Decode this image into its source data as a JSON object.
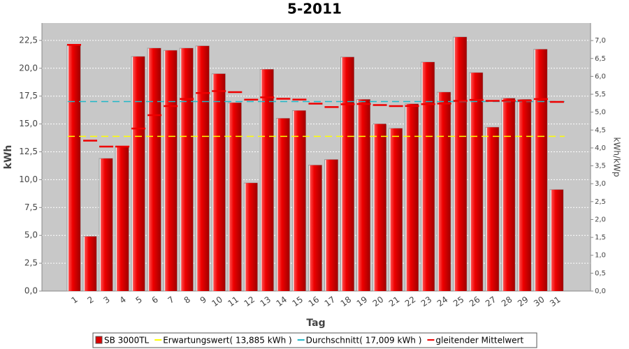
{
  "chart_data": {
    "type": "bar",
    "title": "5-2011",
    "x_label": "Tag",
    "y_label": "kWh",
    "y2_label": "kWh/kWp",
    "categories": [
      "1",
      "2",
      "3",
      "4",
      "5",
      "6",
      "7",
      "8",
      "9",
      "10",
      "11",
      "12",
      "13",
      "14",
      "15",
      "16",
      "17",
      "18",
      "19",
      "20",
      "21",
      "22",
      "23",
      "24",
      "25",
      "26",
      "27",
      "28",
      "29",
      "30",
      "31"
    ],
    "ylim": [
      0,
      24.06
    ],
    "yticks": [
      {
        "value": 0,
        "label": "0,0"
      },
      {
        "value": 2.5,
        "label": "2,5"
      },
      {
        "value": 5,
        "label": "5,0"
      },
      {
        "value": 7.5,
        "label": "7,5"
      },
      {
        "value": 10,
        "label": "10,0"
      },
      {
        "value": 12.5,
        "label": "12,5"
      },
      {
        "value": 15,
        "label": "15,0"
      },
      {
        "value": 17.5,
        "label": "17,5"
      },
      {
        "value": 20,
        "label": "20,0"
      },
      {
        "value": 22.5,
        "label": "22,5"
      }
    ],
    "y2lim": [
      0,
      7.49
    ],
    "y2ticks": [
      {
        "value": 0,
        "label": "0,0"
      },
      {
        "value": 0.5,
        "label": "0,5"
      },
      {
        "value": 1,
        "label": "1,0"
      },
      {
        "value": 1.5,
        "label": "1,5"
      },
      {
        "value": 2,
        "label": "2,0"
      },
      {
        "value": 2.5,
        "label": "2,5"
      },
      {
        "value": 3,
        "label": "3,0"
      },
      {
        "value": 3.5,
        "label": "3,5"
      },
      {
        "value": 4,
        "label": "4,0"
      },
      {
        "value": 4.5,
        "label": "4,5"
      },
      {
        "value": 5,
        "label": "5,0"
      },
      {
        "value": 5.5,
        "label": "5,5"
      },
      {
        "value": 6,
        "label": "6,0"
      },
      {
        "value": 6.5,
        "label": "6,5"
      },
      {
        "value": 7,
        "label": "7,0"
      }
    ],
    "grid": true,
    "legend": "bottom",
    "series": [
      {
        "name": "SB 3000TL",
        "type": "bar",
        "color": "#dd0000",
        "values": [
          22.1,
          4.9,
          11.9,
          13.0,
          21.05,
          21.8,
          21.6,
          21.8,
          22.0,
          19.5,
          16.9,
          9.7,
          19.9,
          15.5,
          16.2,
          11.3,
          11.8,
          21.0,
          17.2,
          15.0,
          14.6,
          16.8,
          20.55,
          17.85,
          22.8,
          19.6,
          14.7,
          17.3,
          17.2,
          21.7,
          9.1
        ]
      },
      {
        "name": "Erwartungswert( 13,885 kWh )",
        "type": "hline",
        "color": "#ffff00",
        "value": 13.885
      },
      {
        "name": "Durchschnitt( 17,009 kWh )",
        "type": "hline",
        "color": "#22b8c8",
        "value": 17.009
      },
      {
        "name": "gleitender Mittelwert",
        "type": "dash",
        "color": "#ee0000",
        "values": [
          22.1,
          13.5,
          12.97,
          12.97,
          14.59,
          15.79,
          16.6,
          17.25,
          17.78,
          17.95,
          17.86,
          17.18,
          17.39,
          17.26,
          17.19,
          16.82,
          16.52,
          16.77,
          16.79,
          16.7,
          16.6,
          16.61,
          16.78,
          16.83,
          17.07,
          17.16,
          17.07,
          17.08,
          17.08,
          17.24,
          16.98
        ]
      }
    ]
  }
}
